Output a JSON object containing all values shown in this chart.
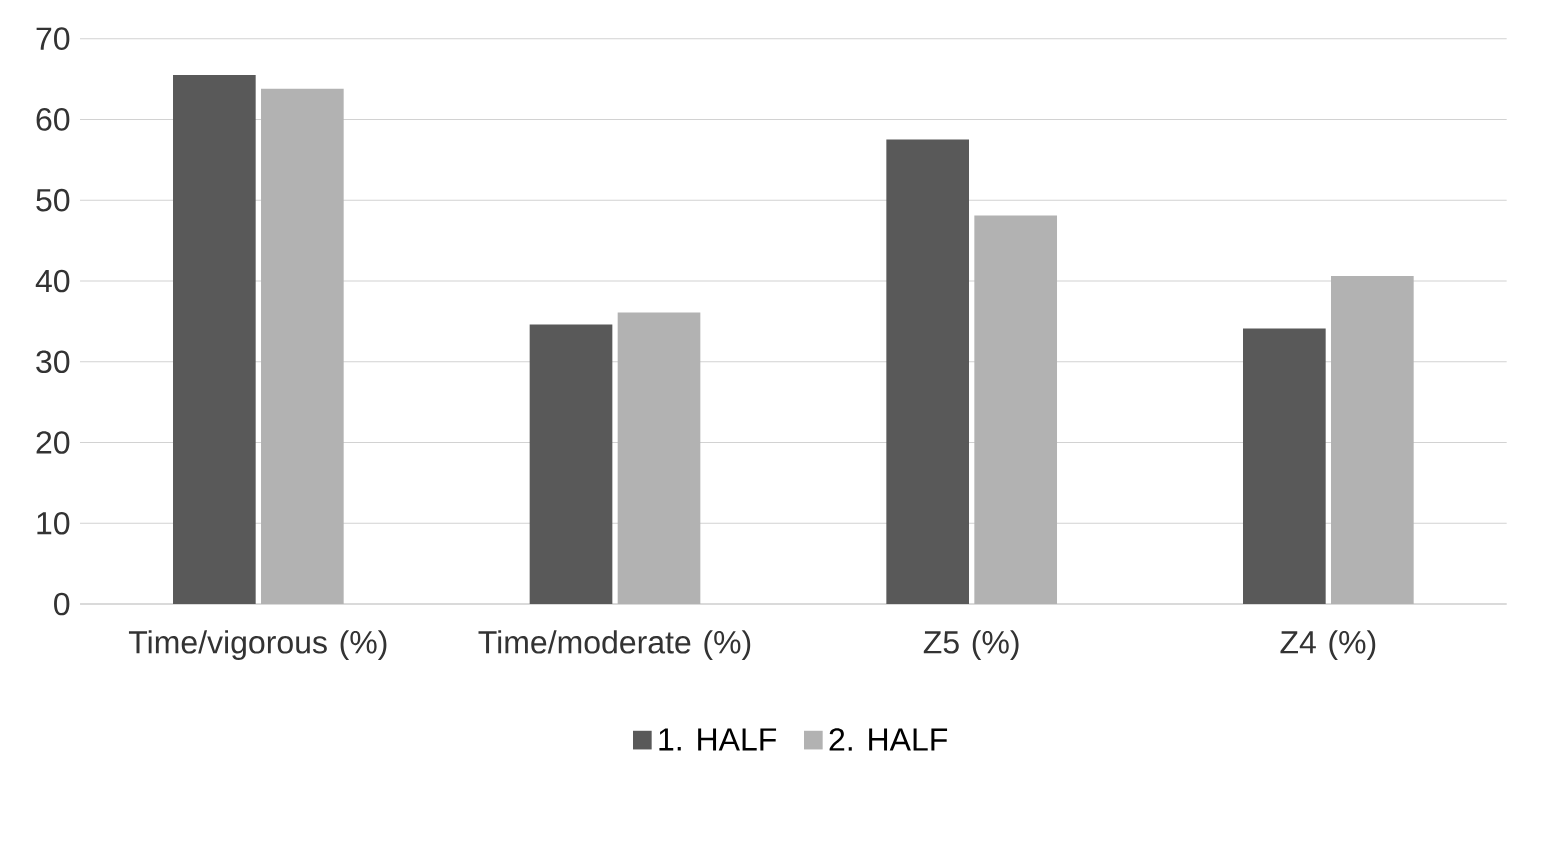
{
  "chart_data": {
    "type": "bar",
    "categories": [
      "Time/vigorous (%)",
      "Time/moderate (%)",
      "Z5 (%)",
      "Z4 (%)"
    ],
    "series": [
      {
        "name": "1. HALF",
        "color": "#595959",
        "values": [
          65.5,
          34.6,
          57.5,
          34.1
        ]
      },
      {
        "name": "2. HALF",
        "color": "#b2b2b2",
        "values": [
          63.8,
          36.1,
          48.1,
          40.6
        ]
      }
    ],
    "ylim": [
      0,
      70
    ],
    "yticks": [
      0,
      10,
      20,
      30,
      40,
      50,
      60,
      70
    ],
    "grid": "y",
    "legend": "bottom"
  }
}
